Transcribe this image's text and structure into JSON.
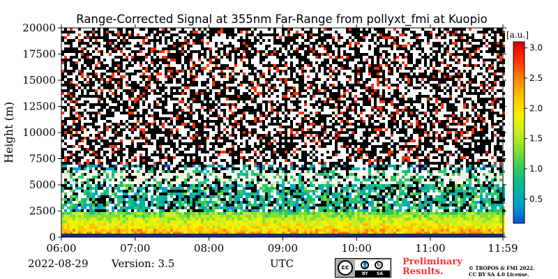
{
  "chart_data": {
    "type": "heatmap",
    "title": "Range-Corrected Signal at 355nm Far-Range from pollyxt_fmi at Kuopio",
    "ylabel": "Height (m)",
    "xlabel": "UTC",
    "x_tick_labels": [
      "06:00",
      "07:00",
      "08:00",
      "09:00",
      "10:00",
      "11:00",
      "11:59"
    ],
    "x_ticks_hours": [
      6.0,
      7.0,
      8.0,
      9.0,
      10.0,
      11.0,
      11.9833
    ],
    "xlim_hours": [
      6.0,
      11.9833
    ],
    "y_ticks": [
      0,
      2500,
      5000,
      7500,
      10000,
      12500,
      15000,
      17500,
      20000
    ],
    "y_tick_labels": [
      "0",
      "2500",
      "5000",
      "7500",
      "10000",
      "12500",
      "15000",
      "17500",
      "20000"
    ],
    "ylim": [
      0,
      20000
    ],
    "colorbar": {
      "unit": "[a.u.]",
      "range": [
        0.1,
        3.1
      ],
      "ticks": [
        0.5,
        1.0,
        1.5,
        2.0,
        2.5,
        3.0
      ],
      "tick_labels": [
        "0.5",
        "1.0",
        "1.5",
        "2.0",
        "2.5",
        "3.0"
      ],
      "colormap": [
        "#0a4fd8",
        "#00a0c8",
        "#00b89a",
        "#30c860",
        "#80e030",
        "#c8ee20",
        "#f8f000",
        "#ffc000",
        "#ff8000",
        "#ff3000",
        "#d80000"
      ]
    },
    "features": {
      "boundary_layer_top_m": 2500,
      "elevated_aerosol_layer_m": [
        5000,
        6500
      ],
      "noise_dominated_above_m": 7000
    }
  },
  "footer": {
    "date": "2022-08-29",
    "version": "Version: 3.5",
    "preliminary": "Preliminary Results.",
    "license_line1": "© TROPOS & FMI 2022.",
    "license_line2": "CC BY SA 4.0 License.",
    "cc_badge": {
      "cc": "cc",
      "by": "BY",
      "sa": "SA"
    }
  }
}
